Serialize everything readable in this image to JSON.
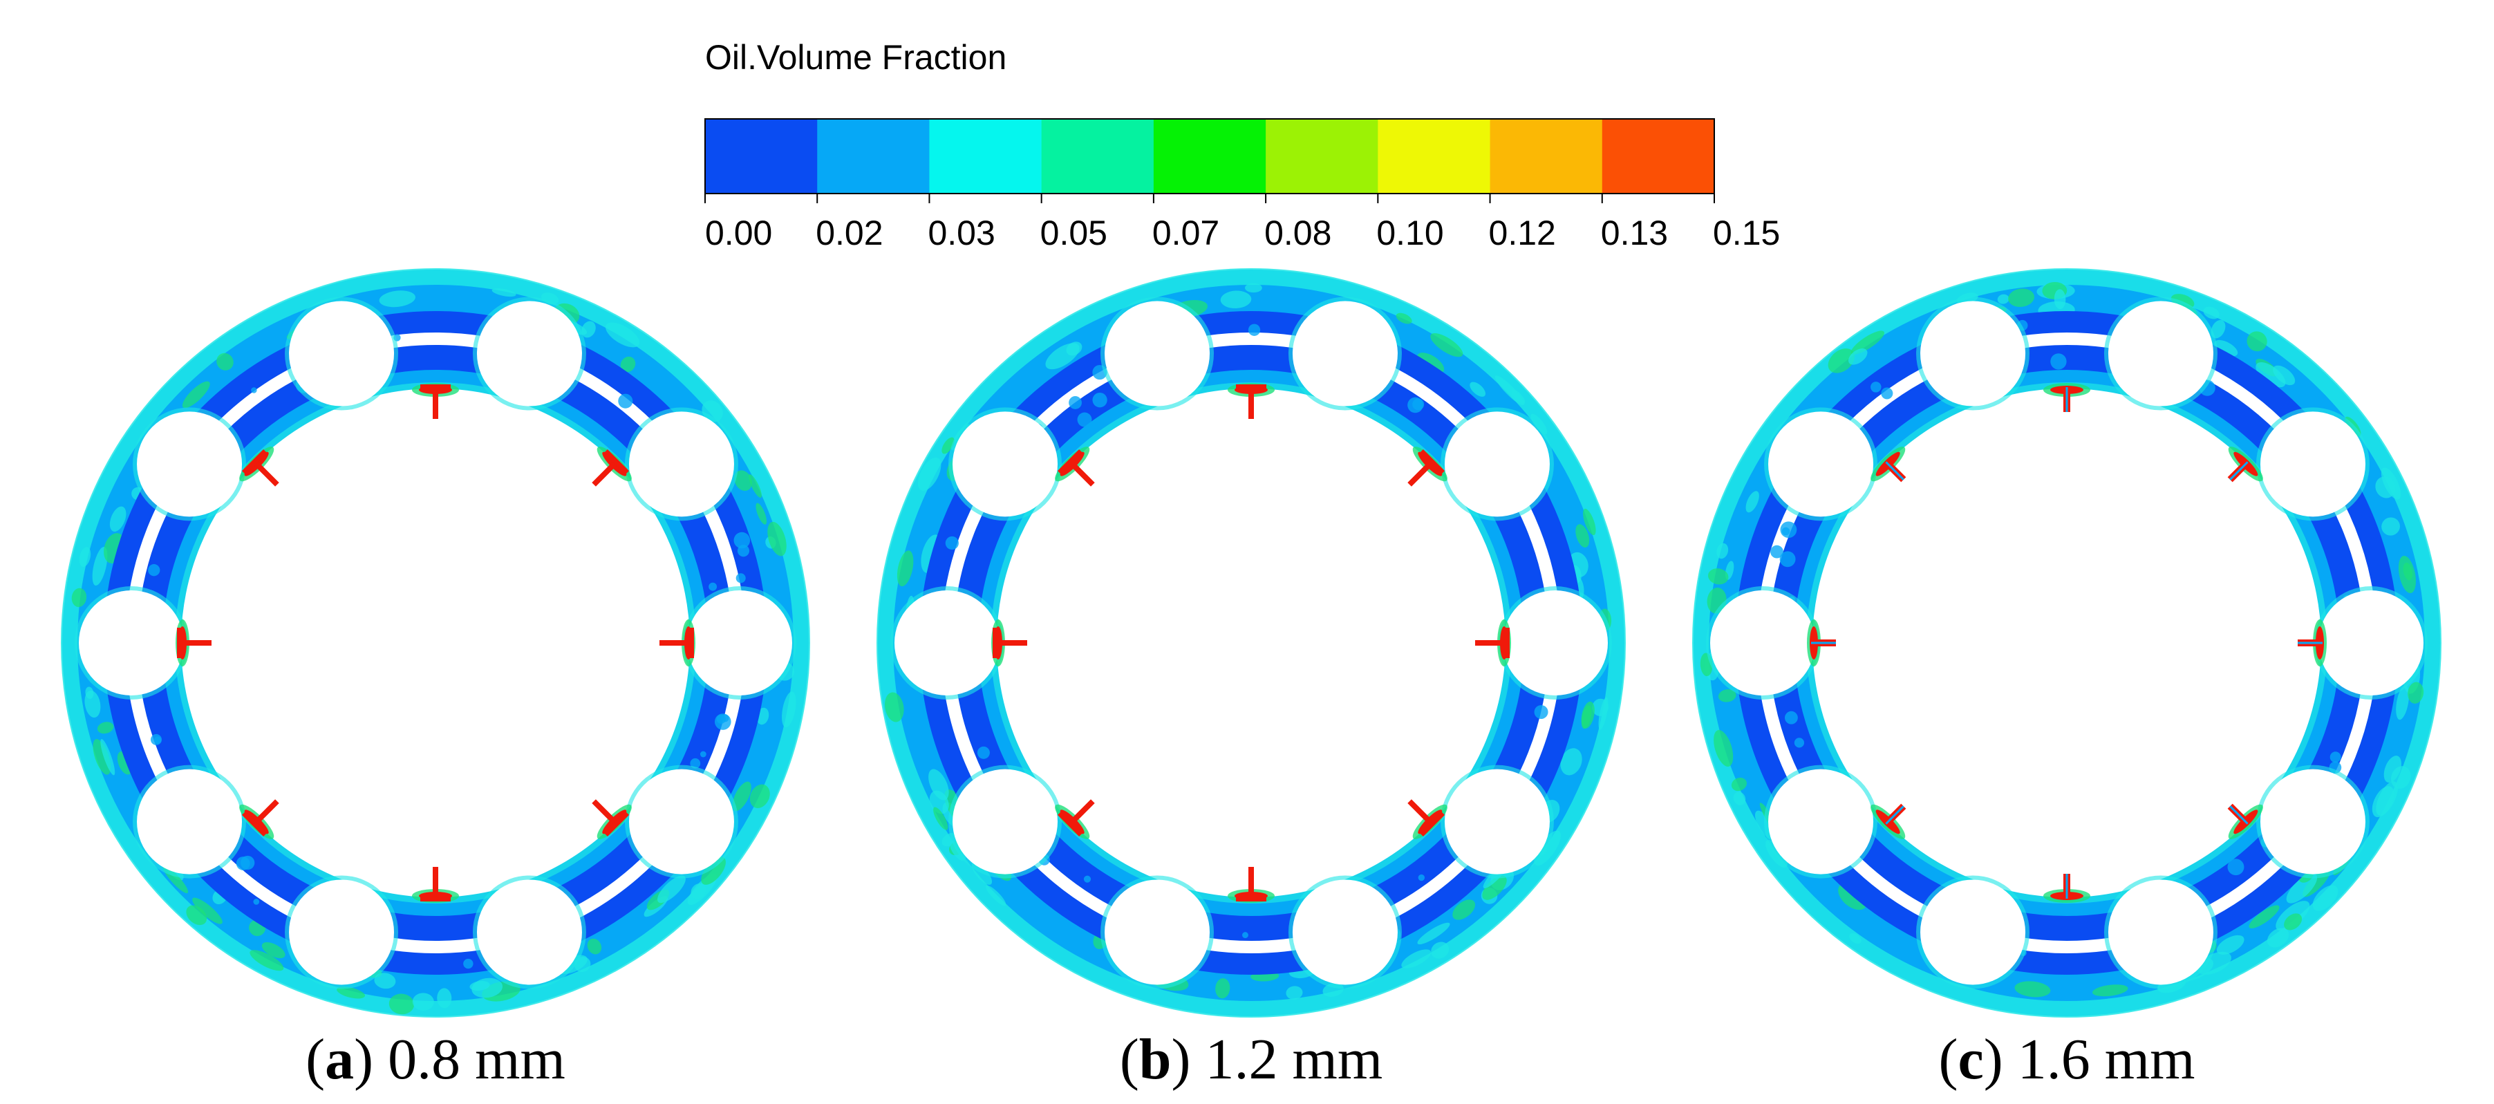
{
  "legend": {
    "title": "Oil.Volume Fraction",
    "ticks": [
      "0.00",
      "0.02",
      "0.03",
      "0.05",
      "0.07",
      "0.08",
      "0.10",
      "0.12",
      "0.13",
      "0.15"
    ],
    "colors": [
      "#0a4cf2",
      "#06a8f6",
      "#05f6ee",
      "#05f2a0",
      "#05f205",
      "#9cf205",
      "#eef805",
      "#fbb805",
      "#fb5005"
    ]
  },
  "panels": [
    {
      "letter": "a",
      "label": "0.8 mm",
      "roller_count": 10,
      "marker_style": "cross"
    },
    {
      "letter": "b",
      "label": "1.2 mm",
      "roller_count": 10,
      "marker_style": "cross"
    },
    {
      "letter": "c",
      "label": "1.6 mm",
      "roller_count": 10,
      "marker_style": "nozzle"
    }
  ],
  "colors": {
    "cavity_blue": "#0a4cf2",
    "light_blue": "#06a8f6",
    "cyan": "#1fe6e6",
    "green": "#1ee07a",
    "marker_red": "#f01a0a"
  }
}
